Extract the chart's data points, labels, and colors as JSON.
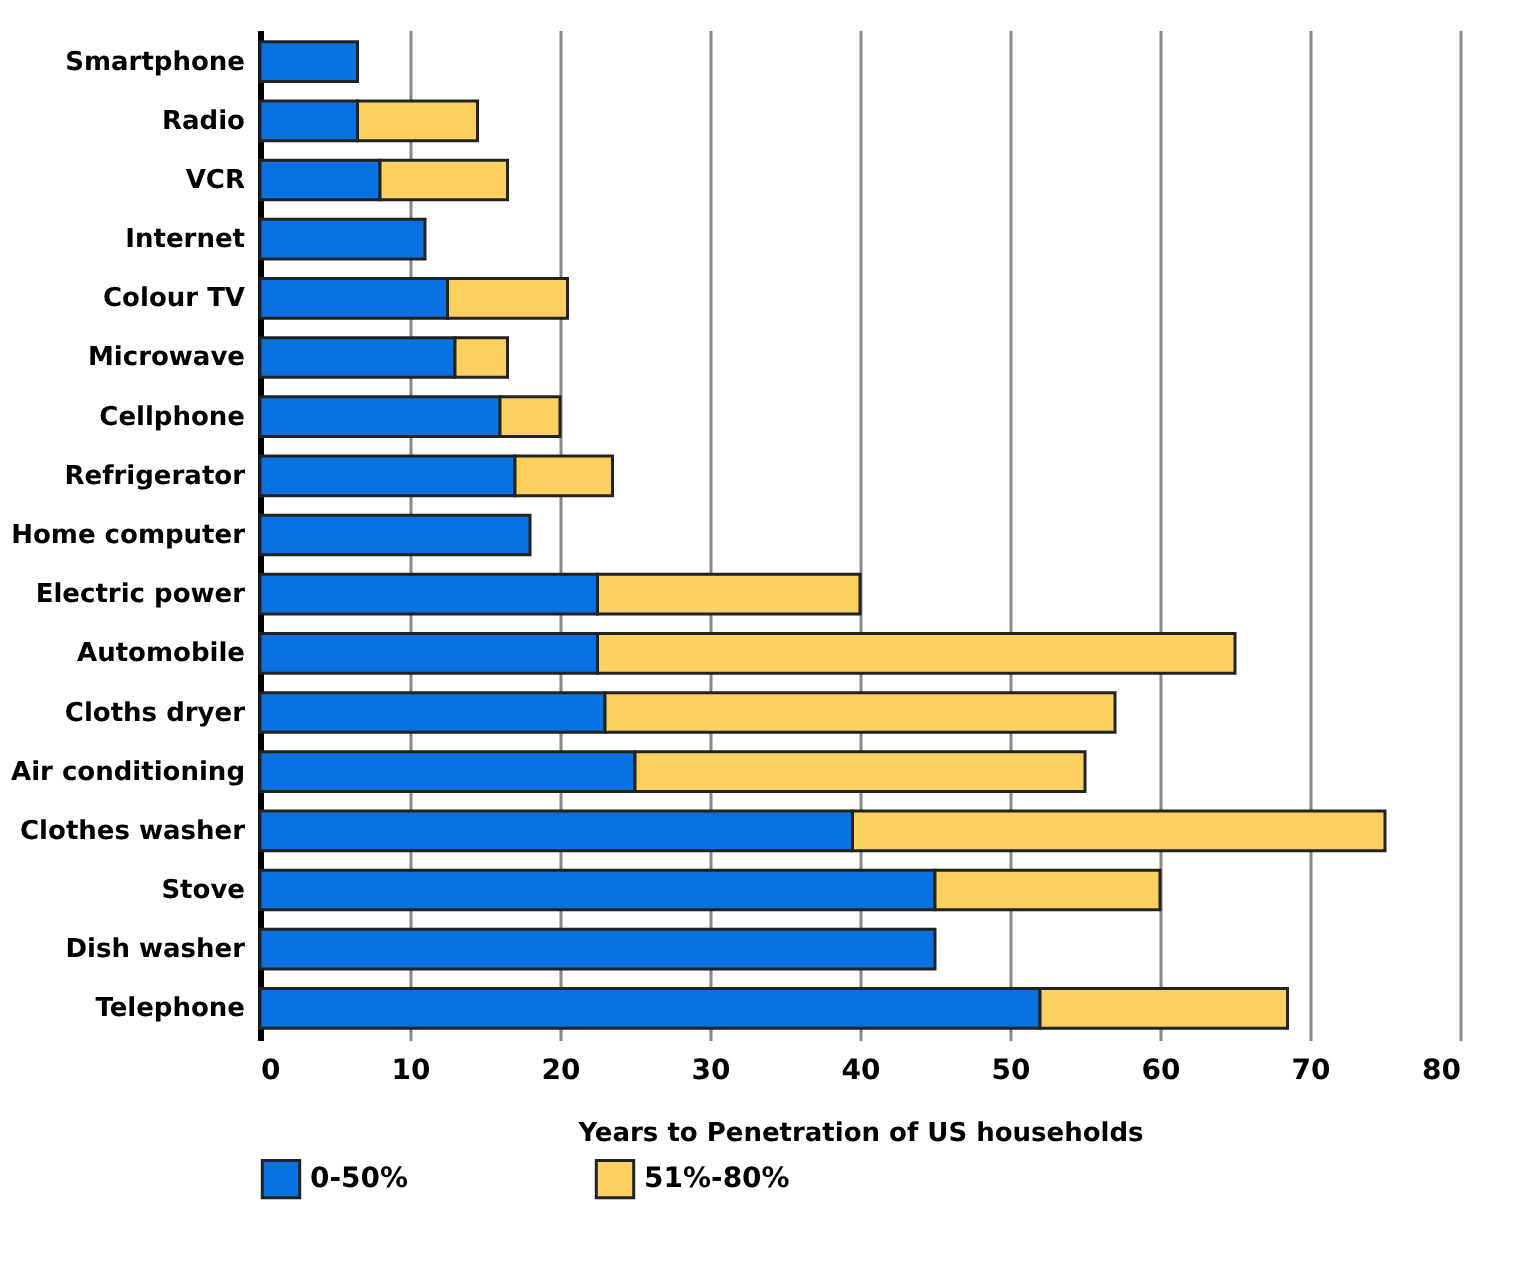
{
  "chart_data": {
    "type": "bar",
    "orientation": "horizontal",
    "stacked": true,
    "xlabel": "Years to Penetration of US households",
    "categories": [
      "Smartphone",
      "Radio",
      "VCR",
      "Internet",
      "Colour TV",
      "Microwave",
      "Cellphone",
      "Refrigerator",
      "Home computer",
      "Electric power",
      "Automobile",
      "Cloths dryer",
      "Air conditioning",
      "Clothes washer",
      "Stove",
      "Dish washer",
      "Telephone"
    ],
    "series": [
      {
        "name": "0-50%",
        "color": "#0a72e0",
        "values": [
          6.5,
          6.5,
          8,
          11,
          12.5,
          13,
          16,
          17,
          18,
          22.5,
          22.5,
          23,
          25,
          39.5,
          45,
          45,
          52
        ]
      },
      {
        "name": "51%-80%",
        "color": "#fdd160",
        "values": [
          null,
          8,
          8.5,
          null,
          8,
          3.5,
          4,
          6.5,
          null,
          17.5,
          42.5,
          34,
          30,
          35.5,
          15,
          null,
          16.5
        ]
      }
    ],
    "xlim": [
      0,
      80
    ],
    "xticks": [
      0,
      10,
      20,
      30,
      40,
      50,
      60,
      70,
      80
    ],
    "grid": "x",
    "legend": "bottom"
  }
}
